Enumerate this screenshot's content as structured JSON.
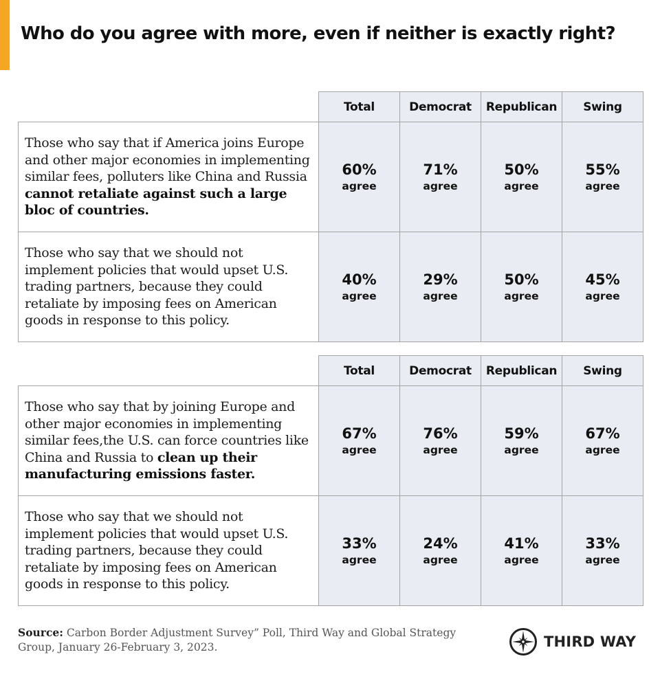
{
  "title": "Who do you agree with more, even if neither is exactly right?",
  "colors": {
    "accent": "#f5a623",
    "cell_fill": "#e9ecf2",
    "border": "#a4a4a4"
  },
  "chart_data": [
    {
      "type": "table",
      "columns": [
        "Total",
        "Democrat",
        "Republican",
        "Swing"
      ],
      "rows": [
        {
          "statement_plain": "Those who say that if America joins Europe and other major economies in implementing similar fees, polluters like China and Russia ",
          "statement_bold": "cannot retaliate against such a large bloc of countries.",
          "values": [
            "60%",
            "71%",
            "50%",
            "55%"
          ],
          "unit": "agree"
        },
        {
          "statement_plain": "Those who say that we should not implement policies that would upset U.S. trading partners, because they could retaliate by imposing fees on American goods in response to this policy.",
          "statement_bold": "",
          "values": [
            "40%",
            "29%",
            "50%",
            "45%"
          ],
          "unit": "agree"
        }
      ]
    },
    {
      "type": "table",
      "columns": [
        "Total",
        "Democrat",
        "Republican",
        "Swing"
      ],
      "rows": [
        {
          "statement_plain": "Those who say that by joining Europe and other major economies in implementing similar fees,the U.S. can force countries like China and Russia to ",
          "statement_bold": "clean up their manufacturing emissions faster.",
          "values": [
            "67%",
            "76%",
            "59%",
            "67%"
          ],
          "unit": "agree"
        },
        {
          "statement_plain": "Those who say that we should not implement policies that would upset U.S. trading partners, because they could retaliate by imposing fees on American goods in response to this policy.",
          "statement_bold": "",
          "values": [
            "33%",
            "24%",
            "41%",
            "33%"
          ],
          "unit": "agree"
        }
      ]
    }
  ],
  "source": {
    "label": "Source:",
    "text": " Carbon Border Adjustment Survey” Poll, Third Way and Global Strategy Group, January 26-February 3, 2023."
  },
  "logo": {
    "text": "THIRD WAY",
    "icon": "compass-star-icon"
  }
}
